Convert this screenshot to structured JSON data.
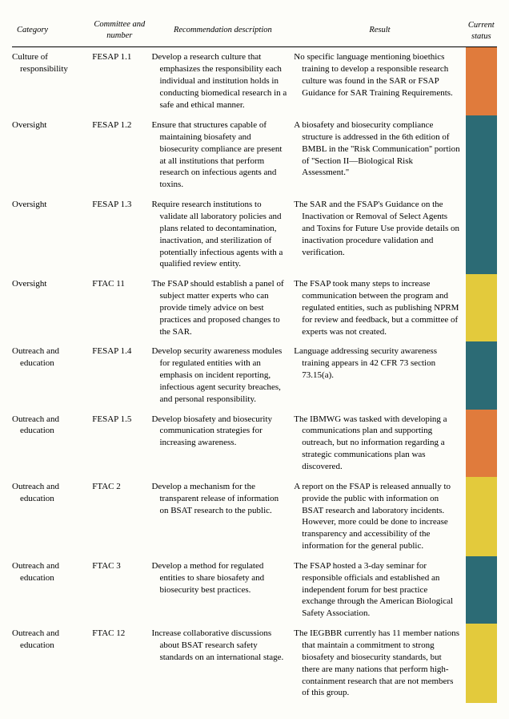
{
  "colors": {
    "orange": "#e07b3c",
    "teal": "#2c6b75",
    "yellow": "#e3ca3c"
  },
  "header": {
    "category": "Category",
    "committee": "Committee and number",
    "recommendation": "Recommendation description",
    "result": "Result",
    "status": "Current status"
  },
  "rows": [
    {
      "category": "Culture of responsibility",
      "committee": "FESAP 1.1",
      "recommendation": "Develop a research culture that emphasizes the responsibility each individual and institution holds in conducting biomedical research in a safe and ethical manner.",
      "result": "No specific language mentioning bioethics training to develop a responsible research culture was found in the SAR or FSAP Guidance for SAR Training Requirements.",
      "status_color": "orange"
    },
    {
      "category": "Oversight",
      "committee": "FESAP 1.2",
      "recommendation": "Ensure that structures capable of maintaining biosafety and biosecurity compliance are present at all institutions that perform research on infectious agents and toxins.",
      "result": "A biosafety and biosecurity compliance structure is addressed in the 6th edition of BMBL in the ''Risk Communication'' portion of ''Section II—Biological Risk Assessment.''",
      "status_color": "teal"
    },
    {
      "category": "Oversight",
      "committee": "FESAP 1.3",
      "recommendation": "Require research institutions to validate all laboratory policies and plans related to decontamination, inactivation, and sterilization of potentially infectious agents with a qualified review entity.",
      "result": "The SAR and the FSAP's Guidance on the Inactivation or Removal of Select Agents and Toxins for Future Use provide details on inactivation procedure validation and verification.",
      "status_color": "teal"
    },
    {
      "category": "Oversight",
      "committee": "FTAC 11",
      "recommendation": "The FSAP should establish a panel of subject matter experts who can provide timely advice on best practices and proposed changes to the SAR.",
      "result": "The FSAP took many steps to increase communication between the program and regulated entities, such as publishing NPRM for review and feedback, but a committee of experts was not created.",
      "status_color": "yellow"
    },
    {
      "category": "Outreach and education",
      "committee": "FESAP 1.4",
      "recommendation": "Develop security awareness modules for regulated entities with an emphasis on incident reporting, infectious agent security breaches, and personal responsibility.",
      "result": "Language addressing security awareness training appears in 42 CFR 73 section 73.15(a).",
      "status_color": "teal"
    },
    {
      "category": "Outreach and education",
      "committee": "FESAP 1.5",
      "recommendation": "Develop biosafety and biosecurity communication strategies for increasing awareness.",
      "result": "The IBMWG was tasked with developing a communications plan and supporting outreach, but no information regarding a strategic communications plan was discovered.",
      "status_color": "orange"
    },
    {
      "category": "Outreach and education",
      "committee": "FTAC 2",
      "recommendation": "Develop a mechanism for the transparent release of information on BSAT research to the public.",
      "result": "A report on the FSAP is released annually to provide the public with information on BSAT research and laboratory incidents. However, more could be done to increase transparency and accessibility of the information for the general public.",
      "status_color": "yellow"
    },
    {
      "category": "Outreach and education",
      "committee": "FTAC 3",
      "recommendation": "Develop a method for regulated entities to share biosafety and biosecurity best practices.",
      "result": "The FSAP hosted a 3-day seminar for responsible officials and established an independent forum for best practice exchange through the American Biological Safety Association.",
      "status_color": "teal"
    },
    {
      "category": "Outreach and education",
      "committee": "FTAC 12",
      "recommendation": "Increase collaborative discussions about BSAT research safety standards on an international stage.",
      "result": "The IEGBBR currently has 11 member nations that maintain a commitment to strong biosafety and biosecurity standards, but there are many nations that perform high-containment research that are not members of this group.",
      "status_color": "yellow"
    }
  ]
}
